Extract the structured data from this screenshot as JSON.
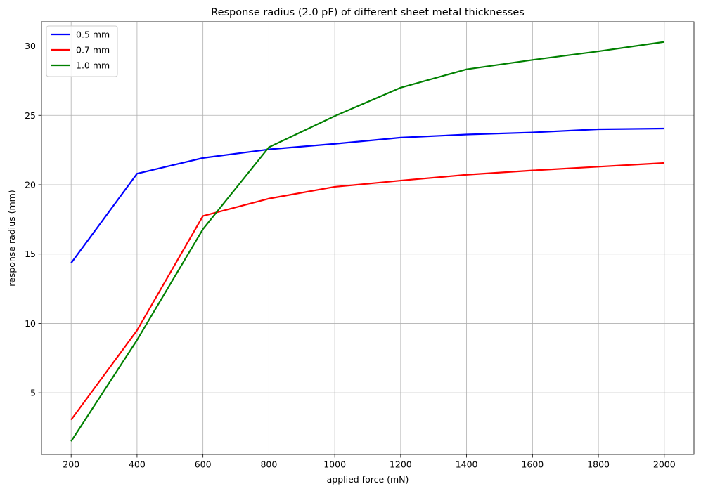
{
  "chart_data": {
    "type": "line",
    "title": "Response radius (2.0 pF) of different sheet metal thicknesses",
    "xlabel": "applied force (mN)",
    "ylabel": "response radius (mm)",
    "x": [
      200,
      400,
      600,
      800,
      1000,
      1200,
      1400,
      1600,
      1800,
      2000
    ],
    "xlim": [
      110,
      2090
    ],
    "ylim": [
      0.55,
      31.75
    ],
    "xticks": [
      200,
      400,
      600,
      800,
      1000,
      1200,
      1400,
      1600,
      1800,
      2000
    ],
    "yticks": [
      5,
      10,
      15,
      20,
      25,
      30
    ],
    "xtick_labels": [
      "200",
      "400",
      "600",
      "800",
      "1000",
      "1200",
      "1400",
      "1600",
      "1800",
      "2000"
    ],
    "ytick_labels": [
      "5",
      "10",
      "15",
      "20",
      "25",
      "30"
    ],
    "grid": true,
    "legend_position": "top-left",
    "series": [
      {
        "name": "0.5 mm",
        "color": "#0000ff",
        "values": [
          14.35,
          20.8,
          21.93,
          22.55,
          22.95,
          23.4,
          23.62,
          23.77,
          24.0,
          24.05
        ]
      },
      {
        "name": "0.7 mm",
        "color": "#ff0000",
        "values": [
          3.05,
          9.5,
          17.75,
          19.0,
          19.85,
          20.3,
          20.72,
          21.03,
          21.3,
          21.57
        ]
      },
      {
        "name": "1.0 mm",
        "color": "#008000",
        "values": [
          1.5,
          8.8,
          16.8,
          22.7,
          24.95,
          27.0,
          28.32,
          29.0,
          29.62,
          30.3
        ]
      }
    ]
  }
}
